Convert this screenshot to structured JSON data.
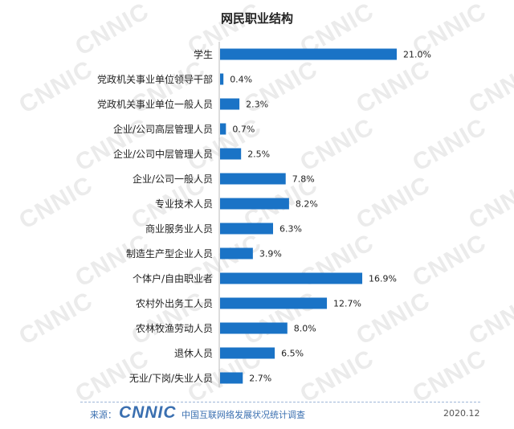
{
  "chart_data": {
    "type": "bar",
    "orientation": "horizontal",
    "title": "网民职业结构",
    "categories": [
      "学生",
      "党政机关事业单位领导干部",
      "党政机关事业单位一般人员",
      "企业/公司高层管理人员",
      "企业/公司中层管理人员",
      "企业/公司一般人员",
      "专业技术人员",
      "商业服务业人员",
      "制造生产型企业人员",
      "个体户/自由职业者",
      "农村外出务工人员",
      "农林牧渔劳动人员",
      "退休人员",
      "无业/下岗/失业人员"
    ],
    "values": [
      21.0,
      0.4,
      2.3,
      0.7,
      2.5,
      7.8,
      8.2,
      6.3,
      3.9,
      16.9,
      12.7,
      8.0,
      6.5,
      2.7
    ],
    "value_labels": [
      "21.0%",
      "0.4%",
      "2.3%",
      "0.7%",
      "2.5%",
      "7.8%",
      "8.2%",
      "6.3%",
      "3.9%",
      "16.9%",
      "12.7%",
      "8.0%",
      "6.5%",
      "2.7%"
    ],
    "unit": "%",
    "xlim": [
      0,
      21.0
    ],
    "bar_color": "#1a73c6",
    "grid": false,
    "legend": "none"
  },
  "footer": {
    "source_label": "来源：",
    "logo": "CNNIC",
    "report_name": "中国互联网络发展状况统计调查",
    "date": "2020.12"
  },
  "watermark": "CNNIC",
  "colors": {
    "bar": "#1a73c6",
    "footer_text": "#3a6fb0",
    "watermark": "#ebebeb"
  }
}
